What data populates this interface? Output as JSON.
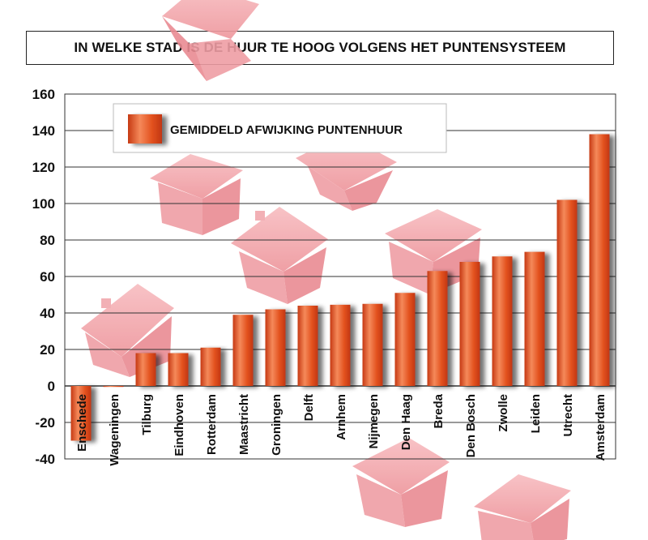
{
  "chart_data": {
    "type": "bar",
    "title": "IN WELKE STAD IS DE HUUR TE HOOG VOLGENS HET PUNTENSYSTEEM",
    "xlabel": "",
    "ylabel": "",
    "ylim": [
      -40,
      160
    ],
    "yticks": [
      160,
      140,
      120,
      100,
      80,
      60,
      40,
      20,
      0,
      -20,
      -40
    ],
    "grid": true,
    "legend_position": "top-left",
    "categories": [
      "Enschede",
      "Wageningen",
      "Tilburg",
      "Eindhoven",
      "Rotterdam",
      "Maastricht",
      "Groningen",
      "Delft",
      "Arnhem",
      "Nijmegen",
      "Den Haag",
      "Breda",
      "Den Bosch",
      "Zwolle",
      "Leiden",
      "Utrecht",
      "Amsterdam"
    ],
    "series": [
      {
        "name": "GEMIDDELD AFWIJKING PUNTENHUUR",
        "values": [
          -30,
          0,
          18,
          18,
          21,
          39,
          42,
          44,
          44.5,
          45,
          51,
          63,
          68,
          71,
          73.5,
          102,
          138
        ],
        "color": "#e0501e"
      }
    ]
  },
  "colors": {
    "bar_light": "#f2874e",
    "bar_dark": "#c93a12",
    "house": "#f4a7ab",
    "grid": "#333333"
  }
}
